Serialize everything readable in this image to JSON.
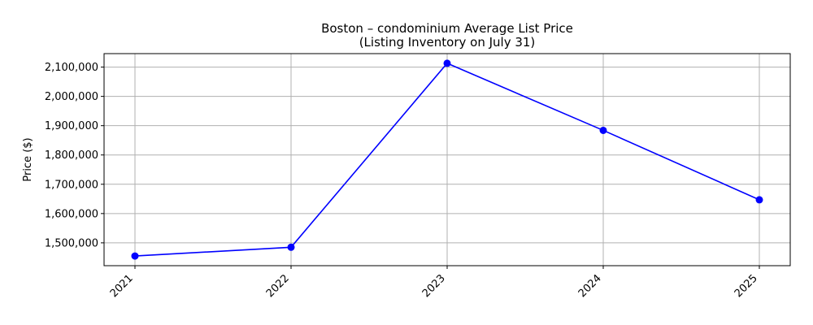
{
  "chart_data": {
    "type": "line",
    "title": "Boston – condominium Average List Price",
    "subtitle": "(Listing Inventory on July 31)",
    "xlabel": "",
    "ylabel": "Price ($)",
    "x": [
      "2021",
      "2022",
      "2023",
      "2024",
      "2025"
    ],
    "series": [
      {
        "values": [
          1455000,
          1485000,
          2113000,
          1884000,
          1647000
        ]
      }
    ],
    "yticks": [
      1500000,
      1600000,
      1700000,
      1800000,
      1900000,
      2000000,
      2100000
    ],
    "ytick_labels": [
      "1,500,000",
      "1,600,000",
      "1,700,000",
      "1,800,000",
      "1,900,000",
      "2,000,000",
      "2,100,000"
    ],
    "ylim": [
      1422000,
      2146000
    ],
    "grid": true,
    "colors": {
      "line": "#0000ff",
      "marker": "#0000ff",
      "grid": "#b0b0b0",
      "axes": "#000000"
    }
  }
}
